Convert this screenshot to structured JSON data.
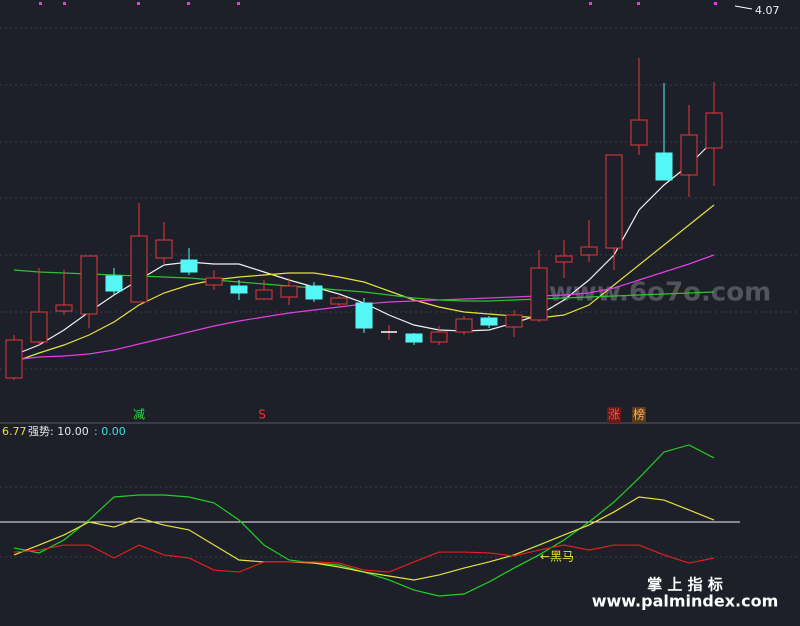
{
  "chart_data": [
    {
      "type": "candlestick",
      "price_label": "4.07",
      "ylim": [
        2.9,
        4.1
      ],
      "grid": true,
      "up_color": "#e8393a",
      "down_color": "#54f6f6",
      "open": [
        2.966,
        3.074,
        3.167,
        3.158,
        3.272,
        3.194,
        3.326,
        3.32,
        3.245,
        3.242,
        3.203,
        3.209,
        3.242,
        3.188,
        3.191,
        3.104,
        3.098,
        3.074,
        3.104,
        3.146,
        3.119,
        3.14,
        3.314,
        3.335,
        3.356,
        3.665,
        3.641,
        3.575,
        3.656
      ],
      "high": [
        3.095,
        3.296,
        3.29,
        3.332,
        3.296,
        3.491,
        3.434,
        3.356,
        3.29,
        3.26,
        3.26,
        3.266,
        3.254,
        3.212,
        3.206,
        3.125,
        3.101,
        3.122,
        3.152,
        3.152,
        3.17,
        3.35,
        3.38,
        3.44,
        3.635,
        3.926,
        3.851,
        3.785,
        3.854
      ],
      "low": [
        2.96,
        3.065,
        3.155,
        3.116,
        3.215,
        3.194,
        3.305,
        3.275,
        3.23,
        3.2,
        3.2,
        3.185,
        3.194,
        3.182,
        3.101,
        3.08,
        3.065,
        3.065,
        3.095,
        3.116,
        3.089,
        3.134,
        3.266,
        3.314,
        3.29,
        3.635,
        3.56,
        3.509,
        3.542
      ],
      "close": [
        3.08,
        3.164,
        3.185,
        3.332,
        3.227,
        3.392,
        3.38,
        3.284,
        3.266,
        3.221,
        3.23,
        3.242,
        3.203,
        3.206,
        3.116,
        3.104,
        3.074,
        3.104,
        3.143,
        3.125,
        3.155,
        3.296,
        3.332,
        3.359,
        3.635,
        3.74,
        3.56,
        3.695,
        3.761
      ],
      "series": [
        {
          "color": "#f0f0f0",
          "values": [
            3.035,
            3.065,
            3.11,
            3.164,
            3.215,
            3.26,
            3.305,
            3.314,
            3.308,
            3.308,
            3.284,
            3.26,
            3.239,
            3.218,
            3.191,
            3.155,
            3.125,
            3.11,
            3.107,
            3.11,
            3.131,
            3.155,
            3.2,
            3.26,
            3.335,
            3.47,
            3.545,
            3.605,
            3.68
          ]
        },
        {
          "color": "#e6e040",
          "values": [
            3.014,
            3.041,
            3.065,
            3.095,
            3.134,
            3.185,
            3.221,
            3.245,
            3.26,
            3.269,
            3.275,
            3.281,
            3.281,
            3.269,
            3.254,
            3.227,
            3.2,
            3.179,
            3.164,
            3.158,
            3.152,
            3.146,
            3.155,
            3.185,
            3.245,
            3.305,
            3.365,
            3.425,
            3.485
          ]
        },
        {
          "color": "#e040e0",
          "values": [
            3.02,
            3.029,
            3.032,
            3.038,
            3.05,
            3.068,
            3.086,
            3.104,
            3.122,
            3.137,
            3.149,
            3.161,
            3.17,
            3.179,
            3.188,
            3.194,
            3.197,
            3.2,
            3.203,
            3.206,
            3.209,
            3.212,
            3.215,
            3.221,
            3.236,
            3.26,
            3.284,
            3.308,
            3.335
          ]
        },
        {
          "color": "#30c030",
          "values": [
            3.29,
            3.284,
            3.281,
            3.278,
            3.275,
            3.272,
            3.269,
            3.266,
            3.26,
            3.254,
            3.248,
            3.242,
            3.236,
            3.23,
            3.224,
            3.215,
            3.206,
            3.2,
            3.197,
            3.197,
            3.2,
            3.203,
            3.206,
            3.209,
            3.212,
            3.215,
            3.218,
            3.221,
            3.224
          ]
        }
      ],
      "annotations": [
        {
          "text": "减",
          "color": "#3fd23f"
        },
        {
          "text": "S",
          "color": "#ff3030"
        },
        {
          "text": "涨",
          "color": "#ff5050"
        },
        {
          "text": "榜",
          "color": "#ffb060"
        }
      ]
    },
    {
      "type": "line",
      "header": [
        {
          "text": "6.77",
          "color": "#e6e040"
        },
        {
          "text": "强势: 10.00",
          "color": "#e8e8e8"
        },
        {
          "text": ": 0.00",
          "color": "#40e0e0"
        }
      ],
      "ylim": [
        0,
        100
      ],
      "reference_line": 50,
      "annotation": "←黑马",
      "series": [
        {
          "color": "#22d022",
          "values": [
            35.6,
            32.8,
            40,
            51.1,
            63.9,
            65,
            65,
            63.9,
            60.6,
            51.1,
            37.2,
            28.9,
            27.2,
            26.1,
            22.2,
            17.8,
            12.2,
            8.9,
            10,
            16.7,
            24.4,
            31.7,
            40,
            50,
            61.1,
            74.4,
            88.9,
            92.8,
            85.6
          ]
        },
        {
          "color": "#e6e040",
          "values": [
            31.7,
            37.2,
            42.8,
            50,
            47.2,
            52.2,
            48.3,
            45.6,
            37.2,
            28.9,
            27.8,
            27.8,
            27.2,
            25,
            22.2,
            20,
            17.8,
            20.6,
            24.4,
            27.8,
            31.7,
            37.2,
            42.8,
            48.3,
            55.6,
            63.9,
            62.2,
            56.7,
            51.1
          ]
        },
        {
          "color": "#e02020",
          "values": [
            33.3,
            34.4,
            37.2,
            37.2,
            30,
            37.2,
            31.7,
            30,
            23.3,
            22.2,
            27.8,
            27.8,
            27.8,
            27.2,
            23.3,
            22.2,
            27.8,
            33.3,
            33.3,
            32.8,
            31.1,
            34.4,
            37.2,
            34.4,
            37.2,
            37.2,
            31.7,
            27.2,
            30
          ]
        }
      ]
    }
  ],
  "watermarks": {
    "site": "www.6o7o.com",
    "brand": "掌 上 指 标",
    "brand_url": "www.palmindex.com"
  }
}
